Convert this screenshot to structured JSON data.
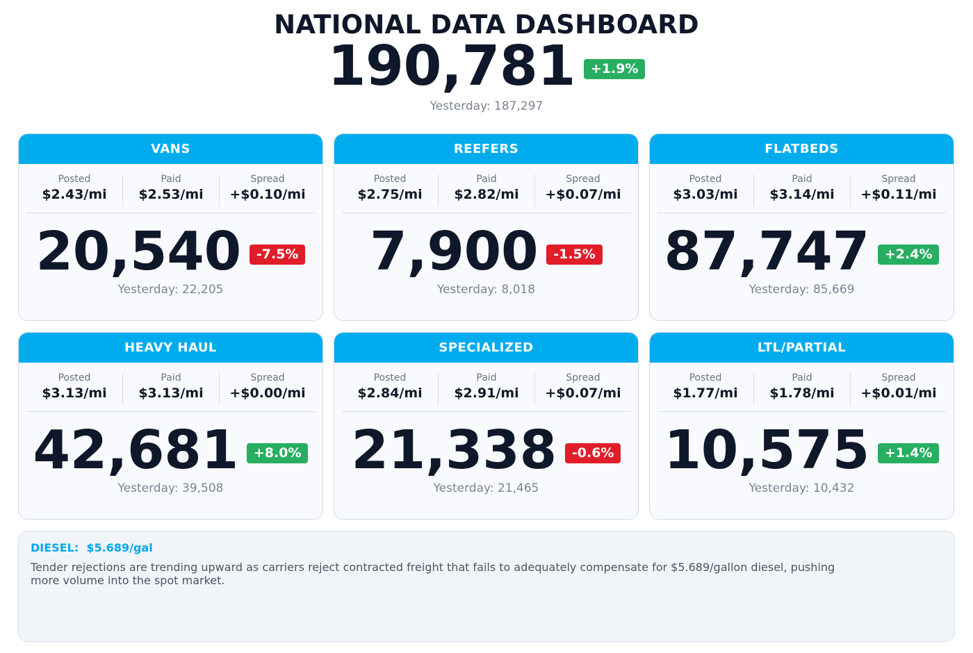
{
  "header": {
    "title": "NATIONAL DATA DASHBOARD",
    "total": "190,781",
    "total_change": "+1.9%",
    "total_change_direction": "up",
    "total_yesterday": "Yesterday: 187,297"
  },
  "labels": {
    "posted": "Posted",
    "paid": "Paid",
    "spread": "Spread"
  },
  "cards": [
    {
      "title": "VANS",
      "posted": "$2.43/mi",
      "paid": "$2.53/mi",
      "spread": "+$0.10/mi",
      "count": "20,540",
      "change": "-7.5%",
      "direction": "down",
      "yesterday": "Yesterday: 22,205"
    },
    {
      "title": "REEFERS",
      "posted": "$2.75/mi",
      "paid": "$2.82/mi",
      "spread": "+$0.07/mi",
      "count": "7,900",
      "change": "-1.5%",
      "direction": "down",
      "yesterday": "Yesterday: 8,018"
    },
    {
      "title": "FLATBEDS",
      "posted": "$3.03/mi",
      "paid": "$3.14/mi",
      "spread": "+$0.11/mi",
      "count": "87,747",
      "change": "+2.4%",
      "direction": "up",
      "yesterday": "Yesterday: 85,669"
    },
    {
      "title": "HEAVY HAUL",
      "posted": "$3.13/mi",
      "paid": "$3.13/mi",
      "spread": "+$0.00/mi",
      "count": "42,681",
      "change": "+8.0%",
      "direction": "up",
      "yesterday": "Yesterday: 39,508"
    },
    {
      "title": "SPECIALIZED",
      "posted": "$2.84/mi",
      "paid": "$2.91/mi",
      "spread": "+$0.07/mi",
      "count": "21,338",
      "change": "-0.6%",
      "direction": "down",
      "yesterday": "Yesterday: 21,465"
    },
    {
      "title": "LTL/PARTIAL",
      "posted": "$1.77/mi",
      "paid": "$1.78/mi",
      "spread": "+$0.01/mi",
      "count": "10,575",
      "change": "+1.4%",
      "direction": "up",
      "yesterday": "Yesterday: 10,432"
    }
  ],
  "diesel": {
    "label": "DIESEL:  $5.689/gal",
    "note": "Tender rejections are trending upward as carriers reject contracted freight that fails to adequately compensate for $5.689/gallon diesel, pushing more volume into the spot market."
  },
  "colors": {
    "accent": "#00acee",
    "up": "#27ae60",
    "down": "#e11d2a",
    "text_dark": "#0f172a",
    "text_muted": "#7b8494"
  }
}
